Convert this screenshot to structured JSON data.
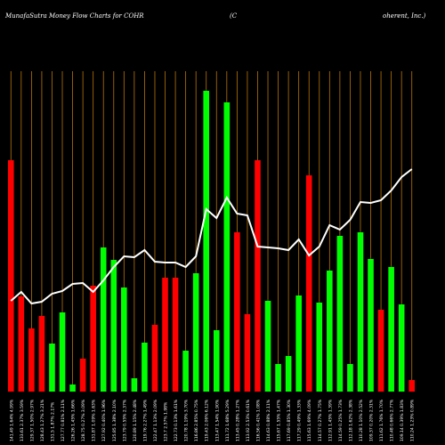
{
  "chart_data": {
    "type": "money-flow",
    "title": "MunafaSutra  Money Flow  Charts for COHR",
    "subtitle": [
      "(C",
      "oherent,  Inc.)"
    ],
    "categories": [
      "141.49 1.64% 4.99%",
      "133.61 2.37% 3.59%",
      "129.37 1.50% 2.97%",
      "128.43 1.27% 3.21%",
      "131.5 1.87% 2.17%",
      "127.77 0.81% 2.11%",
      "126.26 1.45% 1.66%",
      "128.75 0.27% 3.09%",
      "131.87 1.09% 1.63%",
      "127.92 0.40% 1.96%",
      "125.85 1.38% 2.10%",
      "123.79 0.55% 2.37%",
      "120.89 1.15% 2.48%",
      "119.76 2.27% 1.49%",
      "122.47 1.13% 2.09%",
      "123.7 2.57% 1.98%",
      "122.73 0.13% 1.61%",
      "120.78 1.19% 3.70%",
      "116.86 2.85% 0.75%",
      "119.43 2.06% 6.12%",
      "113.47 1.54% 1.90%",
      "111.72 1.68% 5.29%",
      "113.45 0.28% 1.27%",
      "113.92 2.53% 0.61%",
      "116.56 0.41% 1.08%",
      "114.63 0.88% 2.11%",
      "115.67 1.55% 1.47%",
      "117.69 0.85% 1.30%",
      "117.29 0.49% 1.33%",
      "115.63 1.69% 4.09%",
      "114.57 0.27% 1.75%",
      "112.91 1.45% 1.39%",
      "114.59 0.25% 1.73%",
      "112.18 1.62% 2.38%",
      "110.28 1.10% 2.52%",
      "109.37 0.20% 2.31%",
      "111.62 1.76% 1.70%",
      "110.48 0.66% 2.77%",
      "109.14 0.39% 1.83%",
      "110.24 1.23% 0.89%"
    ],
    "series": [
      {
        "name": "Money Flow",
        "values": [
          260,
          107,
          71,
          85,
          54,
          89,
          8,
          37,
          119,
          162,
          148,
          117,
          15,
          55,
          75,
          128,
          128,
          46,
          133,
          338,
          69,
          325,
          179,
          87,
          260,
          102,
          31,
          40,
          108,
          243,
          100,
          136,
          175,
          31,
          179,
          149,
          92,
          140,
          98,
          13
        ],
        "colors": [
          "#ff0000",
          "#ff0000",
          "#ff0000",
          "#ff0000",
          "#00ff00",
          "#00ff00",
          "#00ff00",
          "#ff0000",
          "#ff0000",
          "#00ff00",
          "#00ff00",
          "#00ff00",
          "#00ff00",
          "#00ff00",
          "#ff0000",
          "#ff0000",
          "#ff0000",
          "#00ff00",
          "#00ff00",
          "#00ff00",
          "#00ff00",
          "#00ff00",
          "#ff0000",
          "#ff0000",
          "#ff0000",
          "#00ff00",
          "#00ff00",
          "#00ff00",
          "#00ff00",
          "#ff0000",
          "#00ff00",
          "#00ff00",
          "#00ff00",
          "#00ff00",
          "#00ff00",
          "#00ff00",
          "#ff0000",
          "#00ff00",
          "#00ff00",
          "#ff0000"
        ]
      },
      {
        "name": "Price",
        "color": "#ffffff",
        "values": [
          102,
          112,
          99,
          101,
          110,
          113,
          121,
          122,
          112,
          125,
          140,
          152,
          151,
          159,
          146,
          145,
          145,
          140,
          152,
          205,
          195,
          218,
          200,
          198,
          163,
          162,
          161,
          159,
          171,
          153,
          163,
          187,
          182,
          193,
          213,
          212,
          215,
          226,
          241,
          250
        ]
      }
    ],
    "ylim": [
      0,
      350
    ]
  }
}
